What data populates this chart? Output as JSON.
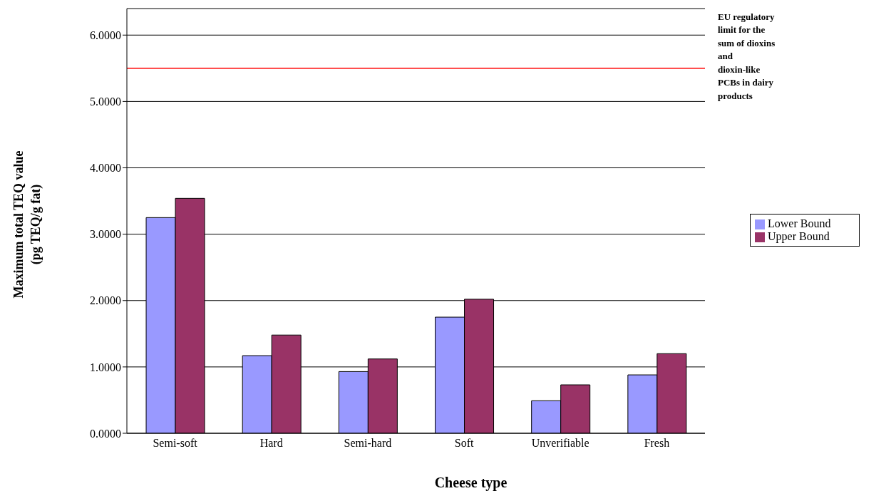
{
  "chart_data": {
    "type": "bar",
    "xlabel": "Cheese type",
    "ylabel": "Maximum total TEQ value (pg TEQ/g fat)",
    "categories": [
      "Semi-soft",
      "Hard",
      "Semi-hard",
      "Soft",
      "Unverifiable",
      "Fresh"
    ],
    "series": [
      {
        "name": "Lower Bound",
        "color": "#9999ff",
        "values": [
          3.25,
          1.17,
          0.93,
          1.75,
          0.49,
          0.88
        ]
      },
      {
        "name": "Upper Bound",
        "color": "#993366",
        "values": [
          3.54,
          1.48,
          1.12,
          2.02,
          0.73,
          1.2
        ]
      }
    ],
    "ylim": [
      0,
      6.4
    ],
    "yticks": [
      {
        "value": 0,
        "label": "0.0000"
      },
      {
        "value": 1,
        "label": "1.0000"
      },
      {
        "value": 2,
        "label": "2.0000"
      },
      {
        "value": 3,
        "label": "3.0000"
      },
      {
        "value": 4,
        "label": "4.0000"
      },
      {
        "value": 5,
        "label": "5.0000"
      },
      {
        "value": 6,
        "label": "6.0000"
      }
    ],
    "grid": "y",
    "legend": "right",
    "ref_lines": [
      {
        "axis": "y",
        "value": 5.5,
        "label": "EU regulatory limit for the sum of dioxins and dioxin-like PCBs in dairy products",
        "color": "#ff0000"
      }
    ]
  }
}
